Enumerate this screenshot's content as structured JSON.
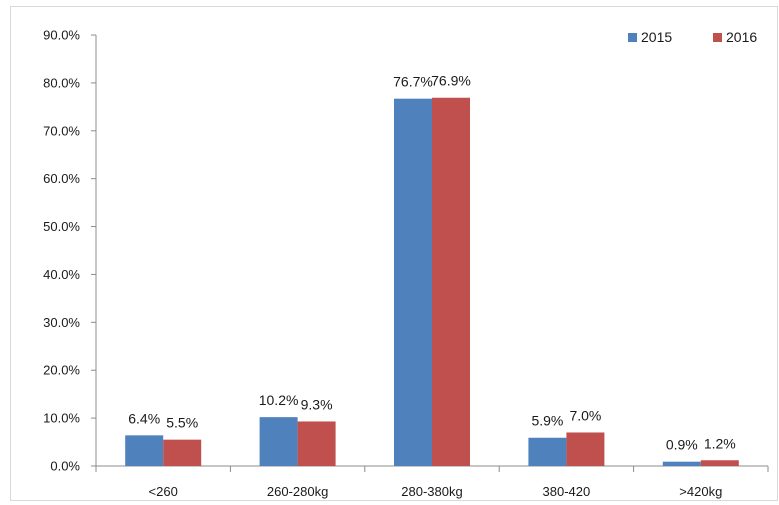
{
  "chart_data": {
    "type": "bar",
    "title": "",
    "xlabel": "",
    "ylabel": "",
    "categories": [
      "<260",
      "260-280kg",
      "280-380kg",
      "380-420",
      ">420kg"
    ],
    "series": [
      {
        "name": "2015",
        "values": [
          6.4,
          10.2,
          76.7,
          5.9,
          0.9
        ],
        "labels": [
          "6.4%",
          "10.2%",
          "76.7%",
          "5.9%",
          "0.9%"
        ],
        "color": "#4f81bd"
      },
      {
        "name": "2016",
        "values": [
          5.5,
          9.3,
          76.9,
          7.0,
          1.2
        ],
        "labels": [
          "5.5%",
          "9.3%",
          "76.9%",
          "7.0%",
          "1.2%"
        ],
        "color": "#c0504d"
      }
    ],
    "ylim": [
      0,
      90
    ],
    "yticks": [
      "0.0%",
      "10.0%",
      "20.0%",
      "30.0%",
      "40.0%",
      "50.0%",
      "60.0%",
      "70.0%",
      "80.0%",
      "90.0%"
    ],
    "grid": false,
    "legend": "top-right"
  }
}
